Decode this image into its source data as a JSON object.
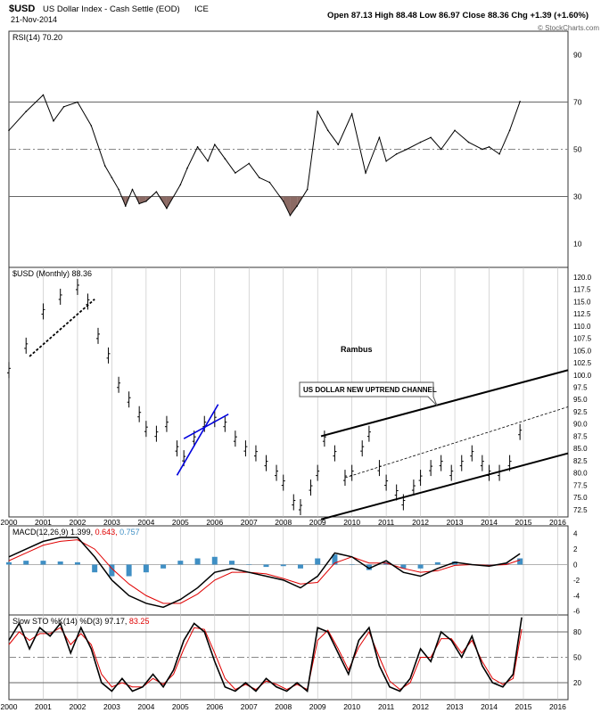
{
  "header": {
    "symbol": "$USD",
    "description": "US Dollar Index - Cash Settle (EOD)",
    "exchange": "ICE",
    "date": "21-Nov-2014",
    "ohlc": "Open 87.13  High 88.48  Low 86.97  Close 88.36  Chg +1.39 (+1.60%)",
    "credit": "© StockCharts.com"
  },
  "x_axis_labels": [
    "2000",
    "2001",
    "2002",
    "2003",
    "2004",
    "2005",
    "2006",
    "2007",
    "2008",
    "2009",
    "2010",
    "2011",
    "2012",
    "2013",
    "2014",
    "2015",
    "2016"
  ],
  "colors": {
    "grid": "#bfbfbf",
    "ref": "#888888",
    "fill": "#8b6a64",
    "macd": "#000000",
    "signal": "#e00000",
    "hist": "#3f8fc4",
    "channel": "#000000",
    "blue": "#0000dd"
  },
  "chart_data": [
    {
      "type": "line",
      "panel": "rsi",
      "legend": "RSI(14) 70.20",
      "ylim": [
        0,
        100
      ],
      "ticks": [
        90,
        70,
        50,
        30,
        10
      ],
      "reference_lines": [
        70,
        50,
        30
      ],
      "x": [
        2000.0,
        2000.5,
        2001.0,
        2001.3,
        2001.6,
        2002.0,
        2002.4,
        2002.8,
        2003.0,
        2003.2,
        2003.4,
        2003.6,
        2003.8,
        2004.0,
        2004.3,
        2004.6,
        2005.0,
        2005.2,
        2005.5,
        2005.8,
        2006.0,
        2006.3,
        2006.6,
        2007.0,
        2007.3,
        2007.6,
        2007.9,
        2008.0,
        2008.2,
        2008.4,
        2008.7,
        2009.0,
        2009.3,
        2009.6,
        2010.0,
        2010.4,
        2010.8,
        2011.0,
        2011.3,
        2011.6,
        2012.0,
        2012.3,
        2012.6,
        2013.0,
        2013.4,
        2013.8,
        2014.0,
        2014.3,
        2014.6,
        2014.9
      ],
      "values": [
        58,
        66,
        73,
        62,
        68,
        70,
        60,
        43,
        38,
        33,
        26,
        33,
        27,
        28,
        32,
        25,
        35,
        42,
        51,
        45,
        52,
        46,
        40,
        44,
        38,
        36,
        30,
        28,
        22,
        26,
        33,
        66,
        58,
        52,
        65,
        40,
        55,
        45,
        48,
        50,
        53,
        55,
        50,
        58,
        53,
        50,
        51,
        48,
        58,
        70.2
      ]
    },
    {
      "type": "ohlc",
      "panel": "price",
      "legend": "$USD (Monthly) 88.36",
      "ylim": [
        71,
        122
      ],
      "ticks": [
        120.0,
        117.5,
        115.0,
        112.5,
        110.0,
        107.5,
        105.0,
        102.5,
        100.0,
        97.5,
        95.0,
        92.5,
        90.0,
        87.5,
        85.0,
        82.5,
        80.0,
        77.5,
        75.0,
        72.5
      ],
      "x": [
        2000.0,
        2000.5,
        2001.0,
        2001.5,
        2002.0,
        2002.3,
        2002.6,
        2002.9,
        2003.2,
        2003.5,
        2003.8,
        2004.0,
        2004.3,
        2004.6,
        2004.9,
        2005.1,
        2005.4,
        2005.7,
        2006.0,
        2006.3,
        2006.6,
        2006.9,
        2007.2,
        2007.5,
        2007.8,
        2008.0,
        2008.3,
        2008.5,
        2008.8,
        2009.0,
        2009.2,
        2009.5,
        2009.8,
        2010.0,
        2010.3,
        2010.5,
        2010.8,
        2011.0,
        2011.3,
        2011.5,
        2011.8,
        2012.0,
        2012.3,
        2012.6,
        2012.9,
        2013.2,
        2013.5,
        2013.8,
        2014.0,
        2014.3,
        2014.6,
        2014.9
      ],
      "values": [
        101,
        106,
        113,
        116,
        118,
        115,
        108,
        104,
        98,
        95,
        92,
        89,
        88,
        90,
        85,
        83,
        87,
        90,
        91,
        90,
        87,
        85,
        84,
        82,
        80,
        78,
        74,
        73,
        77,
        80,
        87,
        84,
        79,
        80,
        85,
        88,
        81,
        78,
        76,
        74,
        77,
        79,
        81,
        82,
        80,
        82,
        84,
        82,
        80,
        80,
        82,
        88.36
      ],
      "annotations": [
        "Rambus",
        "US DOLLAR NEW UPTREND CHANNEL"
      ],
      "channel_lines": [
        {
          "from": [
            2009.1,
            87.5
          ],
          "to": [
            2016.3,
            101.0
          ]
        },
        {
          "from": [
            2009.1,
            70.5
          ],
          "to": [
            2016.3,
            84.0
          ]
        },
        {
          "from": [
            2009.8,
            79.0
          ],
          "to": [
            2016.3,
            93.5
          ]
        }
      ],
      "blue_channel": [
        {
          "from": [
            2004.9,
            79.5
          ],
          "to": [
            2006.1,
            94.0
          ]
        },
        {
          "from": [
            2005.1,
            87.0
          ],
          "to": [
            2006.4,
            92.0
          ]
        }
      ],
      "broken_trendline": {
        "from": [
          2000.6,
          103.8
        ],
        "to": [
          2002.5,
          115.5
        ]
      }
    },
    {
      "type": "line",
      "panel": "macd",
      "legend_name": "MACD(12,26,9)",
      "legend_macd": "1.399,",
      "legend_signal": "0.643,",
      "legend_hist": "0.757",
      "ylim": [
        -6.5,
        5
      ],
      "ticks": [
        4,
        2,
        0,
        -2,
        -4,
        -6
      ],
      "x": [
        2000.0,
        2000.5,
        2001.0,
        2001.5,
        2002.0,
        2002.5,
        2003.0,
        2003.5,
        2004.0,
        2004.5,
        2005.0,
        2005.5,
        2006.0,
        2006.5,
        2007.0,
        2007.5,
        2008.0,
        2008.5,
        2009.0,
        2009.5,
        2010.0,
        2010.5,
        2011.0,
        2011.5,
        2012.0,
        2012.5,
        2013.0,
        2013.5,
        2014.0,
        2014.5,
        2014.9
      ],
      "series": [
        {
          "name": "MACD",
          "values": [
            1.0,
            2.0,
            3.0,
            3.5,
            3.5,
            1.0,
            -2.0,
            -4.0,
            -5.0,
            -5.5,
            -4.5,
            -3.0,
            -1.0,
            -0.5,
            -1.0,
            -1.5,
            -2.0,
            -3.0,
            -1.5,
            1.5,
            1.0,
            -0.5,
            0.5,
            -1.0,
            -1.5,
            -0.5,
            0.3,
            0.0,
            -0.2,
            0.2,
            1.4
          ]
        },
        {
          "name": "Signal",
          "values": [
            0.5,
            1.5,
            2.5,
            3.0,
            3.2,
            2.0,
            -0.5,
            -2.5,
            -4.0,
            -5.0,
            -5.0,
            -3.8,
            -2.0,
            -1.0,
            -1.0,
            -1.2,
            -1.8,
            -2.5,
            -2.3,
            0.2,
            1.0,
            0.2,
            0.2,
            -0.5,
            -1.0,
            -0.8,
            -0.1,
            0.0,
            -0.1,
            0.0,
            0.6
          ]
        },
        {
          "name": "Histogram",
          "values": [
            0.3,
            0.5,
            0.5,
            0.4,
            0.3,
            -1.0,
            -1.5,
            -1.5,
            -1.0,
            -0.5,
            0.5,
            0.8,
            1.0,
            0.5,
            0.0,
            -0.3,
            -0.2,
            -0.5,
            0.8,
            1.3,
            0.0,
            -0.7,
            0.3,
            -0.5,
            -0.5,
            0.3,
            0.4,
            0.0,
            -0.1,
            0.2,
            0.8
          ]
        }
      ]
    },
    {
      "type": "line",
      "panel": "stochastic",
      "legend_name": "Slow STO %K(14) %D(3)",
      "legend_k": "97.17,",
      "legend_d": "83.25",
      "ylim": [
        0,
        100
      ],
      "ticks": [
        80,
        50,
        20
      ],
      "reference_lines": [
        80,
        50,
        20
      ],
      "x": [
        2000.0,
        2000.3,
        2000.6,
        2000.9,
        2001.2,
        2001.5,
        2001.8,
        2002.1,
        2002.4,
        2002.7,
        2003.0,
        2003.3,
        2003.6,
        2003.9,
        2004.2,
        2004.5,
        2004.8,
        2005.1,
        2005.4,
        2005.7,
        2006.0,
        2006.3,
        2006.6,
        2006.9,
        2007.2,
        2007.5,
        2007.8,
        2008.1,
        2008.4,
        2008.7,
        2009.0,
        2009.3,
        2009.6,
        2009.9,
        2010.2,
        2010.5,
        2010.8,
        2011.1,
        2011.4,
        2011.7,
        2012.0,
        2012.3,
        2012.6,
        2012.9,
        2013.2,
        2013.5,
        2013.8,
        2014.1,
        2014.4,
        2014.7,
        2014.95
      ],
      "series": [
        {
          "name": "%K",
          "values": [
            70,
            90,
            60,
            85,
            75,
            90,
            55,
            85,
            60,
            20,
            10,
            25,
            10,
            15,
            30,
            15,
            35,
            70,
            90,
            80,
            45,
            15,
            10,
            20,
            10,
            25,
            15,
            10,
            20,
            10,
            85,
            80,
            55,
            30,
            70,
            85,
            40,
            15,
            10,
            25,
            60,
            45,
            80,
            70,
            50,
            75,
            40,
            20,
            15,
            30,
            97.17
          ]
        },
        {
          "name": "%D",
          "values": [
            65,
            80,
            70,
            78,
            78,
            85,
            65,
            78,
            65,
            30,
            15,
            20,
            15,
            15,
            25,
            18,
            30,
            60,
            85,
            83,
            55,
            25,
            12,
            18,
            12,
            22,
            18,
            12,
            18,
            12,
            70,
            82,
            60,
            35,
            62,
            80,
            50,
            22,
            12,
            20,
            50,
            50,
            72,
            72,
            55,
            70,
            45,
            25,
            18,
            25,
            83.25
          ]
        }
      ]
    }
  ]
}
